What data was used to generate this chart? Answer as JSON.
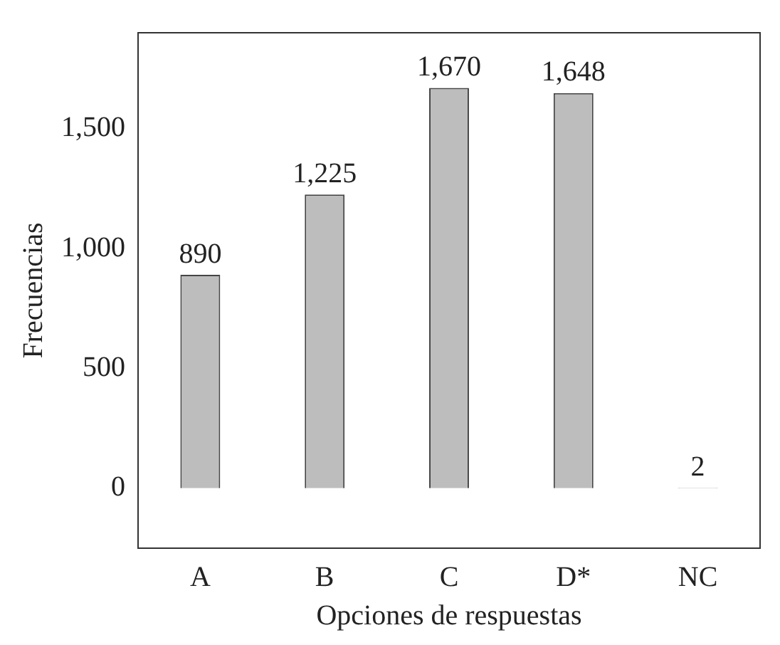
{
  "chart_data": {
    "type": "bar",
    "xlabel": "Opciones de respuestas",
    "ylabel": "Frecuencias",
    "categories": [
      "A",
      "B",
      "C",
      "D*",
      "NC"
    ],
    "values": [
      890,
      1225,
      1670,
      1648,
      2
    ],
    "color": "#bdbdbd",
    "ylim": [
      -250,
      1900
    ],
    "yticks": [
      0,
      {
        "value": 500,
        "label": "500"
      },
      {
        "value": 1000,
        "label": "1,000"
      },
      {
        "value": 1500,
        "label": "1,500"
      }
    ],
    "value_labels": [
      "890",
      "1,225",
      "1,670",
      "1,648",
      "2"
    ],
    "grid": false
  }
}
